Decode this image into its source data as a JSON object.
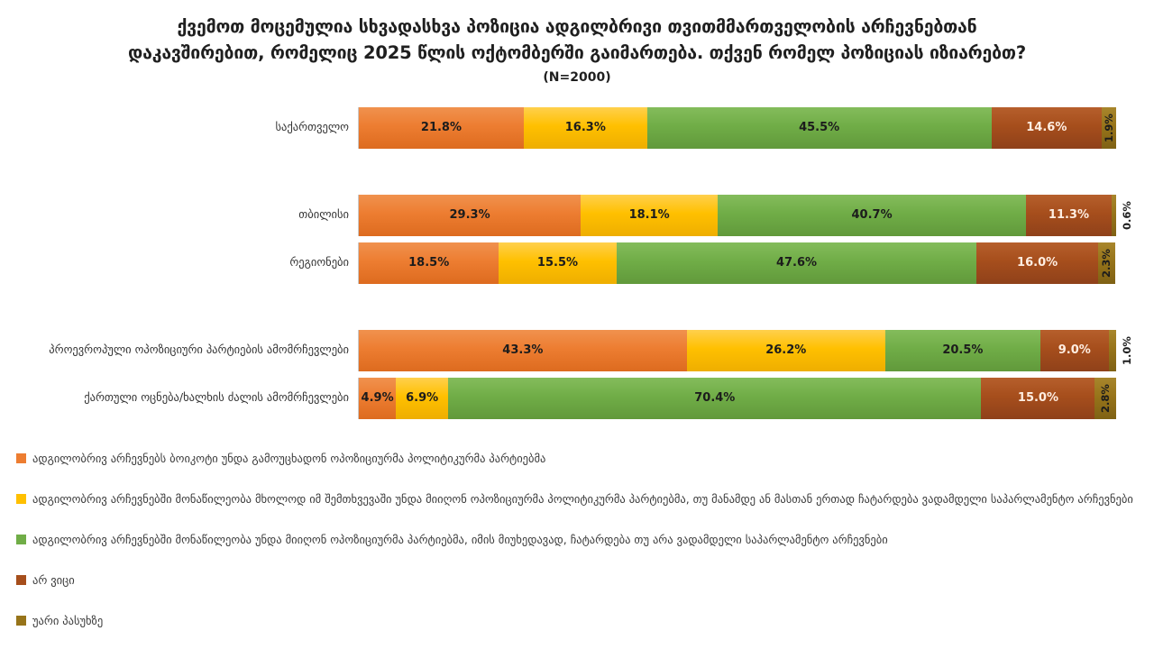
{
  "title": {
    "line1": "ქვემოთ მოცემულია სხვადასხვა პოზიცია ადგილბრივი თვითმმართველობის არჩევნებთან",
    "line2": "დაკავშირებით, რომელიც 2025 წლის ოქტომბერში გაიმართება. თქვენ რომელ პოზიციას იზიარებთ?",
    "sample_size": "(N=2000)"
  },
  "chart_data": {
    "type": "bar",
    "orientation": "horizontal",
    "stacked": true,
    "value_unit": "%",
    "xlim": [
      0,
      100
    ],
    "grid": false,
    "legend_position": "bottom",
    "categories": [
      "საქართველო",
      "თბილისი",
      "რეგიონები",
      "პროევროპული ოპოზიციური პარტიების ამომრჩევლები",
      "ქართული ოცნება/ხალხის ძალის ამომრჩევლები"
    ],
    "group_gap_after_rows": [
      0,
      2
    ],
    "series": [
      {
        "name": "ადგილობრივ არჩევნებს ბოიკოტი უნდა გამოუცხადონ ოპოზიციურმა პოლიტიკურმა პარტიებმა",
        "color": "#ED7D31",
        "values": [
          21.8,
          29.3,
          18.5,
          43.3,
          4.9
        ]
      },
      {
        "name": "ადგილობრივ არჩევნებში მონაწილეობა მხოლოდ იმ შემთხვევაში უნდა მიიღონ ოპოზიციურმა პოლიტიკურმა პარტიებმა, თუ მანამდე ან მასთან ერთად ჩატარდება ვადამდელი საპარლამენტო არჩევნები",
        "color": "#FFC000",
        "values": [
          16.3,
          18.1,
          15.5,
          26.2,
          6.9
        ]
      },
      {
        "name": "ადგილობრივ არჩევნებში მონაწილეობა უნდა მიიღონ ოპოზიციურმა პარტიებმა, იმის მიუხედავად, ჩატარდება თუ არა ვადამდელი საპარლამენტო არჩევნები",
        "color": "#70AD47",
        "values": [
          45.5,
          40.7,
          47.6,
          20.5,
          70.4
        ]
      },
      {
        "name": "არ ვიცი",
        "color": "#A64E1C",
        "values": [
          14.6,
          11.3,
          16.0,
          9.0,
          15.0
        ]
      },
      {
        "name": "უარი პასუხზე",
        "color": "#97741A",
        "values": [
          1.9,
          0.6,
          2.3,
          1.0,
          2.8
        ]
      }
    ]
  }
}
